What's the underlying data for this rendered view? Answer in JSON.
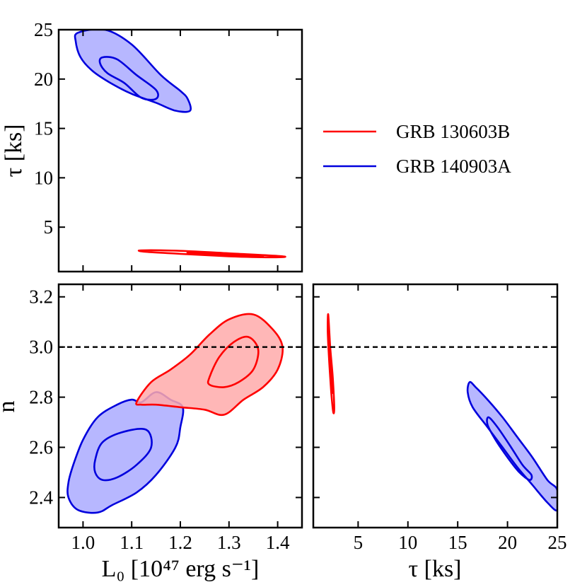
{
  "chart_data": {
    "type": "contour",
    "description_title": "",
    "legend": [
      {
        "label": "GRB 130603B",
        "color": "#ff0000"
      },
      {
        "label": "GRB 140903A",
        "color": "#0000dd"
      }
    ],
    "panels": [
      {
        "id": "tau_vs_L0",
        "xlim": [
          0.95,
          1.45
        ],
        "ylim": [
          0.5,
          25
        ],
        "xticks": [
          1.0,
          1.1,
          1.2,
          1.3,
          1.4
        ],
        "yticks": [
          5,
          10,
          15,
          20,
          25
        ],
        "ytick_labels": [
          "5",
          "10",
          "15",
          "20",
          "25"
        ],
        "ylabel": "τ [ks]",
        "series": [
          {
            "name": "GRB 140903A",
            "color": "#0000dd",
            "fill": "#aaaaff",
            "outer": [
              [
                0.99,
                24.7
              ],
              [
                1.045,
                25.0
              ],
              [
                1.1,
                23.5
              ],
              [
                1.16,
                20.4
              ],
              [
                1.2,
                18.8
              ],
              [
                1.215,
                18.0
              ],
              [
                1.22,
                16.8
              ],
              [
                1.19,
                16.8
              ],
              [
                1.15,
                17.6
              ],
              [
                1.1,
                18.5
              ],
              [
                1.06,
                19.5
              ],
              [
                1.02,
                20.8
              ],
              [
                0.995,
                22.2
              ],
              [
                0.985,
                23.8
              ]
            ],
            "inner": [
              [
                1.04,
                22.2
              ],
              [
                1.07,
                22.0
              ],
              [
                1.11,
                20.4
              ],
              [
                1.15,
                18.9
              ],
              [
                1.15,
                18.0
              ],
              [
                1.12,
                18.1
              ],
              [
                1.085,
                19.6
              ],
              [
                1.05,
                20.6
              ],
              [
                1.035,
                21.6
              ]
            ]
          },
          {
            "name": "GRB 130603B",
            "color": "#ff0000",
            "fill": "none",
            "outer": [
              [
                1.12,
                2.65
              ],
              [
                1.2,
                2.6
              ],
              [
                1.3,
                2.35
              ],
              [
                1.41,
                2.05
              ],
              [
                1.39,
                1.95
              ],
              [
                1.3,
                2.05
              ],
              [
                1.2,
                2.3
              ],
              [
                1.13,
                2.5
              ]
            ],
            "inner": [
              [
                1.22,
                2.45
              ],
              [
                1.3,
                2.3
              ],
              [
                1.37,
                2.1
              ],
              [
                1.3,
                2.15
              ],
              [
                1.23,
                2.3
              ]
            ]
          }
        ]
      },
      {
        "id": "n_vs_L0",
        "xlim": [
          0.95,
          1.45
        ],
        "ylim": [
          2.28,
          3.25
        ],
        "xticks": [
          1.0,
          1.1,
          1.2,
          1.3,
          1.4
        ],
        "xtick_labels": [
          "1.0",
          "1.1",
          "1.2",
          "1.3",
          "1.4"
        ],
        "yticks": [
          2.4,
          2.6,
          2.8,
          3.0,
          3.2
        ],
        "ytick_labels": [
          "2.4",
          "2.6",
          "2.8",
          "3.0",
          "3.2"
        ],
        "xlabel": "L₀ [10⁴⁷ erg s⁻¹]",
        "ylabel": "n",
        "hline": 3.0,
        "series": [
          {
            "name": "GRB 140903A",
            "color": "#0000dd",
            "fill": "#aaaaff",
            "outer": [
              [
                0.97,
                2.46
              ],
              [
                0.98,
                2.53
              ],
              [
                1.0,
                2.63
              ],
              [
                1.03,
                2.72
              ],
              [
                1.07,
                2.77
              ],
              [
                1.1,
                2.79
              ],
              [
                1.12,
                2.78
              ],
              [
                1.15,
                2.82
              ],
              [
                1.18,
                2.79
              ],
              [
                1.205,
                2.76
              ],
              [
                1.2,
                2.68
              ],
              [
                1.19,
                2.6
              ],
              [
                1.15,
                2.49
              ],
              [
                1.11,
                2.42
              ],
              [
                1.06,
                2.37
              ],
              [
                1.03,
                2.34
              ],
              [
                0.99,
                2.35
              ],
              [
                0.97,
                2.4
              ]
            ],
            "inner": [
              [
                1.025,
                2.55
              ],
              [
                1.04,
                2.62
              ],
              [
                1.08,
                2.66
              ],
              [
                1.13,
                2.67
              ],
              [
                1.14,
                2.6
              ],
              [
                1.11,
                2.53
              ],
              [
                1.07,
                2.48
              ],
              [
                1.04,
                2.47
              ],
              [
                1.025,
                2.5
              ]
            ]
          },
          {
            "name": "GRB 130603B",
            "color": "#ff0000",
            "fill": "#ffaaaa",
            "outer": [
              [
                1.11,
                2.78
              ],
              [
                1.14,
                2.86
              ],
              [
                1.18,
                2.91
              ],
              [
                1.22,
                2.97
              ],
              [
                1.26,
                3.05
              ],
              [
                1.3,
                3.11
              ],
              [
                1.35,
                3.13
              ],
              [
                1.39,
                3.07
              ],
              [
                1.41,
                3.0
              ],
              [
                1.4,
                2.91
              ],
              [
                1.37,
                2.84
              ],
              [
                1.33,
                2.79
              ],
              [
                1.29,
                2.73
              ],
              [
                1.25,
                2.75
              ],
              [
                1.2,
                2.76
              ],
              [
                1.15,
                2.77
              ],
              [
                1.12,
                2.77
              ]
            ],
            "inner": [
              [
                1.26,
                2.88
              ],
              [
                1.28,
                2.96
              ],
              [
                1.31,
                3.02
              ],
              [
                1.34,
                3.04
              ],
              [
                1.36,
                2.99
              ],
              [
                1.35,
                2.91
              ],
              [
                1.32,
                2.86
              ],
              [
                1.29,
                2.84
              ],
              [
                1.26,
                2.85
              ]
            ]
          }
        ]
      },
      {
        "id": "n_vs_tau",
        "xlim": [
          0.5,
          25
        ],
        "ylim": [
          2.28,
          3.25
        ],
        "xticks": [
          5,
          10,
          15,
          20,
          25
        ],
        "xtick_labels": [
          "5",
          "10",
          "15",
          "20",
          "25"
        ],
        "yticks": [
          2.4,
          2.6,
          2.8,
          3.0,
          3.2
        ],
        "xlabel": "τ [ks]",
        "hline": 3.0,
        "series": [
          {
            "name": "GRB 140903A",
            "color": "#0000dd",
            "fill": "#aaaaff",
            "outer": [
              [
                16.2,
                2.86
              ],
              [
                16.8,
                2.84
              ],
              [
                18.0,
                2.79
              ],
              [
                19.5,
                2.72
              ],
              [
                21.0,
                2.64
              ],
              [
                22.5,
                2.56
              ],
              [
                24.0,
                2.47
              ],
              [
                25.0,
                2.43
              ],
              [
                25.0,
                2.35
              ],
              [
                24.0,
                2.38
              ],
              [
                22.5,
                2.45
              ],
              [
                21.0,
                2.52
              ],
              [
                19.5,
                2.6
              ],
              [
                18.0,
                2.68
              ],
              [
                16.5,
                2.76
              ],
              [
                16.0,
                2.82
              ]
            ],
            "inner": [
              [
                18.1,
                2.72
              ],
              [
                19.0,
                2.68
              ],
              [
                20.2,
                2.61
              ],
              [
                21.5,
                2.53
              ],
              [
                22.4,
                2.49
              ],
              [
                22.2,
                2.47
              ],
              [
                21.2,
                2.5
              ],
              [
                20.0,
                2.56
              ],
              [
                18.8,
                2.63
              ],
              [
                18.0,
                2.69
              ]
            ]
          },
          {
            "name": "GRB 130603B",
            "color": "#ff0000",
            "fill": "none",
            "outer": [
              [
                2.0,
                3.13
              ],
              [
                2.2,
                3.0
              ],
              [
                2.45,
                2.88
              ],
              [
                2.6,
                2.76
              ],
              [
                2.5,
                2.74
              ],
              [
                2.3,
                2.82
              ],
              [
                2.1,
                2.94
              ],
              [
                1.95,
                3.06
              ]
            ],
            "inner": [
              [
                2.1,
                3.02
              ],
              [
                2.3,
                2.92
              ],
              [
                2.45,
                2.82
              ],
              [
                2.35,
                2.85
              ],
              [
                2.15,
                2.95
              ]
            ]
          }
        ]
      }
    ]
  }
}
